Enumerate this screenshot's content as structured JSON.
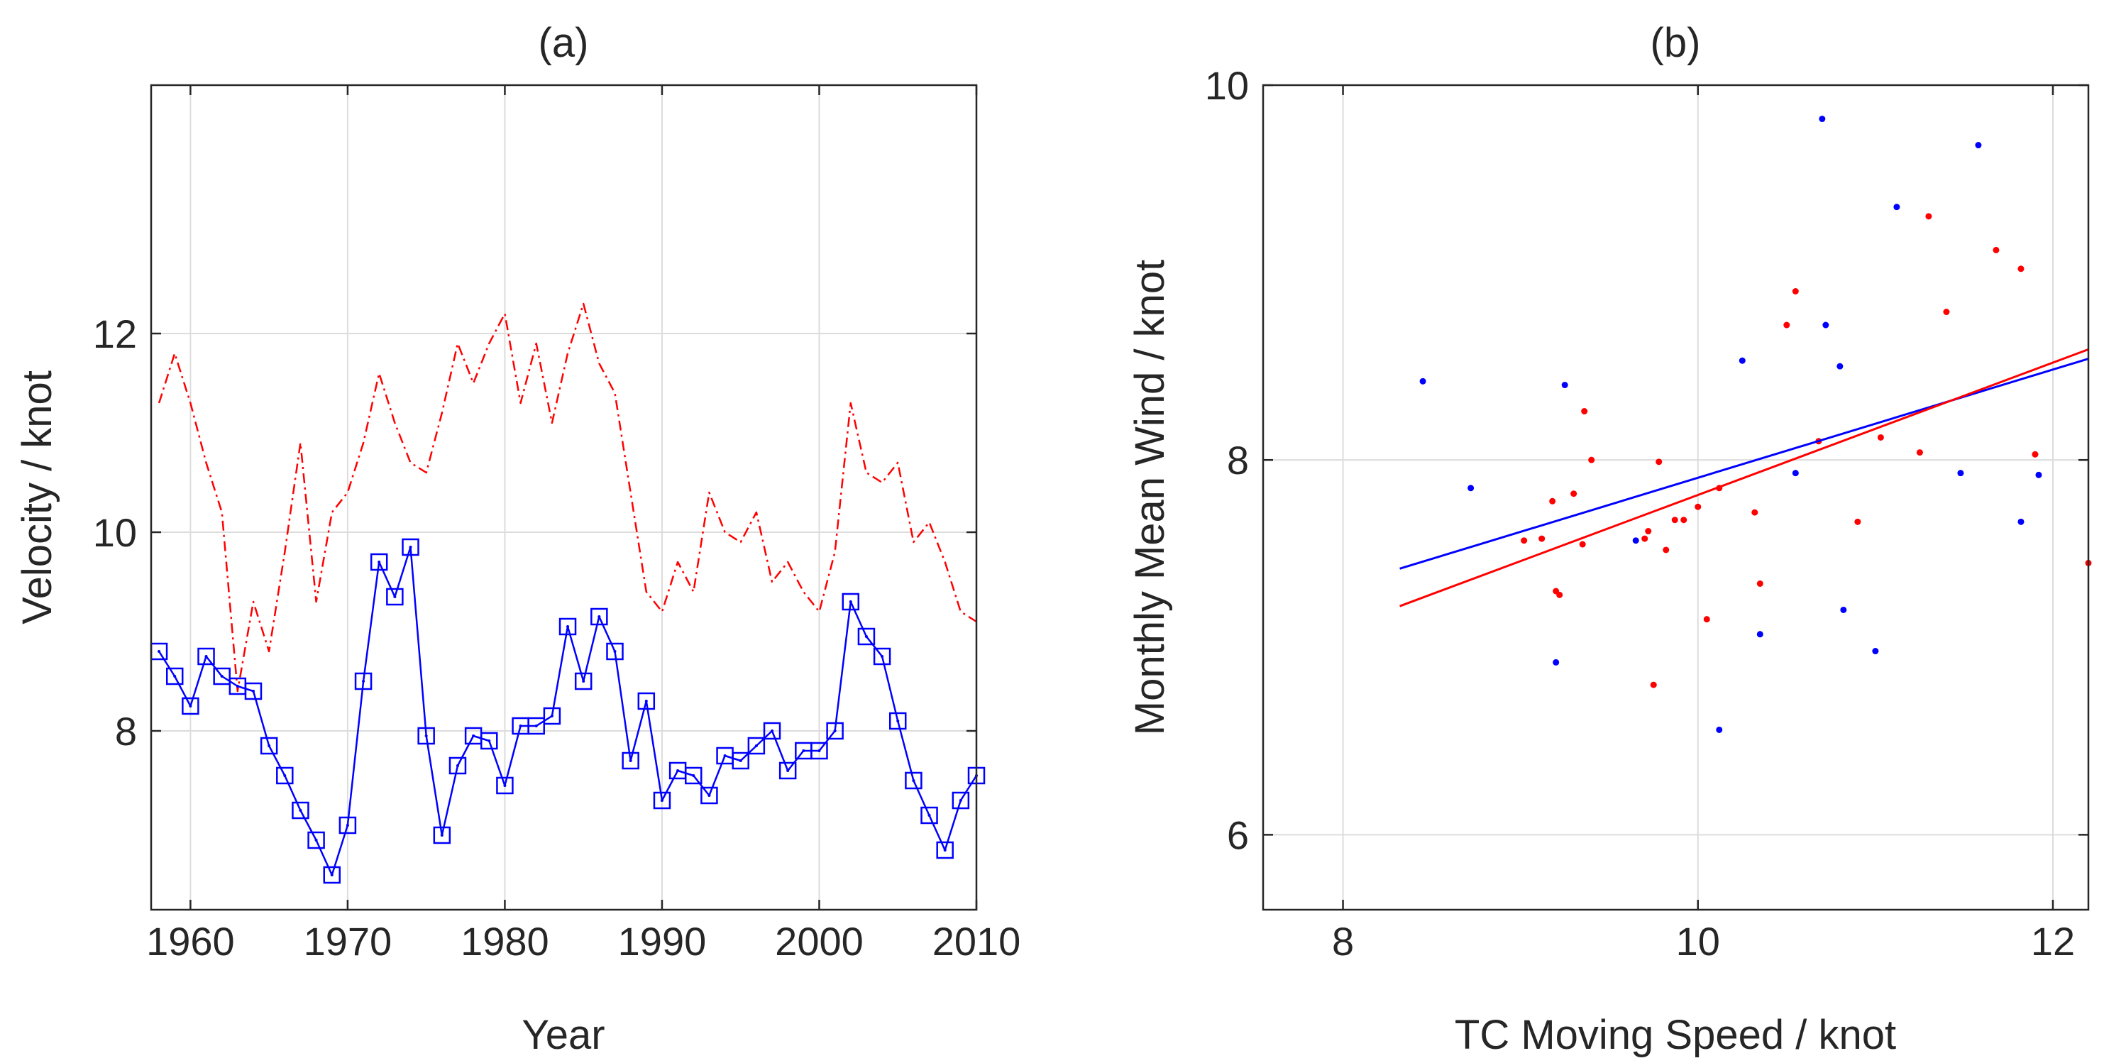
{
  "chart_data": [
    {
      "panel": "(a)",
      "type": "line",
      "title": "(a)",
      "xlabel": "Year",
      "ylabel": "Velocity / knot",
      "xlim": [
        1957.5,
        2010
      ],
      "ylim": [
        6.2,
        14.5
      ],
      "xticks": [
        1960,
        1970,
        1980,
        1990,
        2000,
        2010
      ],
      "yticks": [
        8,
        10,
        12
      ],
      "grid": true,
      "x": [
        1958,
        1959,
        1960,
        1961,
        1962,
        1963,
        1964,
        1965,
        1966,
        1967,
        1968,
        1969,
        1970,
        1971,
        1972,
        1973,
        1974,
        1975,
        1976,
        1977,
        1978,
        1979,
        1980,
        1981,
        1982,
        1983,
        1984,
        1985,
        1986,
        1987,
        1988,
        1989,
        1990,
        1991,
        1992,
        1993,
        1994,
        1995,
        1996,
        1997,
        1998,
        1999,
        2000,
        2001,
        2002,
        2003,
        2004,
        2005,
        2006,
        2007,
        2008,
        2009,
        2010
      ],
      "series": [
        {
          "name": "red dash-dot",
          "color": "#ff0000",
          "style": "dash-dot",
          "marker": "none",
          "values": [
            11.3,
            11.8,
            11.3,
            10.7,
            10.2,
            8.4,
            9.3,
            8.8,
            9.8,
            10.9,
            9.3,
            10.2,
            10.4,
            10.9,
            11.6,
            11.1,
            10.7,
            10.6,
            11.2,
            11.9,
            11.5,
            11.9,
            12.2,
            11.3,
            11.9,
            11.1,
            11.8,
            12.3,
            11.7,
            11.4,
            10.4,
            9.4,
            9.2,
            9.7,
            9.4,
            10.4,
            10.0,
            9.9,
            10.2,
            9.5,
            9.7,
            9.4,
            9.2,
            9.8,
            11.3,
            10.6,
            10.5,
            10.7,
            9.9,
            10.1,
            9.7,
            9.2,
            9.1
          ]
        },
        {
          "name": "blue squares",
          "color": "#0000ff",
          "style": "solid",
          "marker": "square",
          "values": [
            8.8,
            8.55,
            8.25,
            8.75,
            8.55,
            8.45,
            8.4,
            7.85,
            7.55,
            7.2,
            6.9,
            6.55,
            7.05,
            8.5,
            9.7,
            9.35,
            9.85,
            7.95,
            6.95,
            7.65,
            7.95,
            7.9,
            7.45,
            8.05,
            8.05,
            8.15,
            9.05,
            8.5,
            9.15,
            8.8,
            7.7,
            8.3,
            7.3,
            7.6,
            7.55,
            7.35,
            7.75,
            7.7,
            7.85,
            8.0,
            7.6,
            7.8,
            7.8,
            8.0,
            9.3,
            8.95,
            8.75,
            8.1,
            7.5,
            7.15,
            6.8,
            7.3,
            7.55
          ]
        }
      ]
    },
    {
      "panel": "(b)",
      "type": "scatter",
      "title": "(b)",
      "xlabel": "TC Moving Speed / knot",
      "ylabel": "Monthly Mean Wind / knot",
      "xlim": [
        7.55,
        12.2
      ],
      "ylim": [
        5.6,
        10
      ],
      "xticks": [
        8,
        10,
        12
      ],
      "yticks": [
        6,
        8,
        10
      ],
      "grid": true,
      "series": [
        {
          "name": "blue points",
          "color": "#0000ff",
          "points": [
            [
              8.45,
              8.42
            ],
            [
              8.72,
              7.85
            ],
            [
              9.2,
              6.92
            ],
            [
              9.25,
              8.4
            ],
            [
              9.65,
              7.57
            ],
            [
              10.12,
              6.56
            ],
            [
              10.25,
              8.53
            ],
            [
              10.35,
              7.07
            ],
            [
              10.55,
              7.93
            ],
            [
              10.7,
              9.82
            ],
            [
              10.72,
              8.72
            ],
            [
              10.8,
              8.5
            ],
            [
              10.82,
              7.2
            ],
            [
              11.0,
              6.98
            ],
            [
              11.12,
              9.35
            ],
            [
              11.48,
              7.93
            ],
            [
              11.58,
              9.68
            ],
            [
              11.82,
              7.67
            ],
            [
              11.92,
              7.92
            ]
          ]
        },
        {
          "name": "red points",
          "color": "#ff0000",
          "points": [
            [
              9.02,
              7.57
            ],
            [
              9.12,
              7.58
            ],
            [
              9.18,
              7.78
            ],
            [
              9.2,
              7.3
            ],
            [
              9.22,
              7.28
            ],
            [
              9.3,
              7.82
            ],
            [
              9.35,
              7.55
            ],
            [
              9.36,
              8.26
            ],
            [
              9.4,
              8.0
            ],
            [
              9.7,
              7.58
            ],
            [
              9.72,
              7.62
            ],
            [
              9.75,
              6.8
            ],
            [
              9.78,
              7.99
            ],
            [
              9.82,
              7.52
            ],
            [
              9.87,
              7.68
            ],
            [
              9.92,
              7.68
            ],
            [
              10.0,
              7.75
            ],
            [
              10.05,
              7.15
            ],
            [
              10.12,
              7.85
            ],
            [
              10.32,
              7.72
            ],
            [
              10.35,
              7.34
            ],
            [
              10.5,
              8.72
            ],
            [
              10.55,
              8.9
            ],
            [
              10.68,
              8.1
            ],
            [
              10.9,
              7.67
            ],
            [
              11.03,
              8.12
            ],
            [
              11.25,
              8.04
            ],
            [
              11.3,
              9.3
            ],
            [
              11.4,
              8.79
            ],
            [
              11.68,
              9.12
            ],
            [
              11.82,
              9.02
            ],
            [
              11.9,
              8.03
            ],
            [
              12.2,
              7.45
            ]
          ]
        }
      ],
      "fits": [
        {
          "name": "blue fit",
          "color": "#0000ff",
          "x": [
            8.32,
            12.2
          ],
          "y": [
            7.42,
            8.54
          ]
        },
        {
          "name": "red fit",
          "color": "#ff0000",
          "x": [
            8.32,
            12.2
          ],
          "y": [
            7.22,
            8.59
          ]
        }
      ]
    }
  ]
}
